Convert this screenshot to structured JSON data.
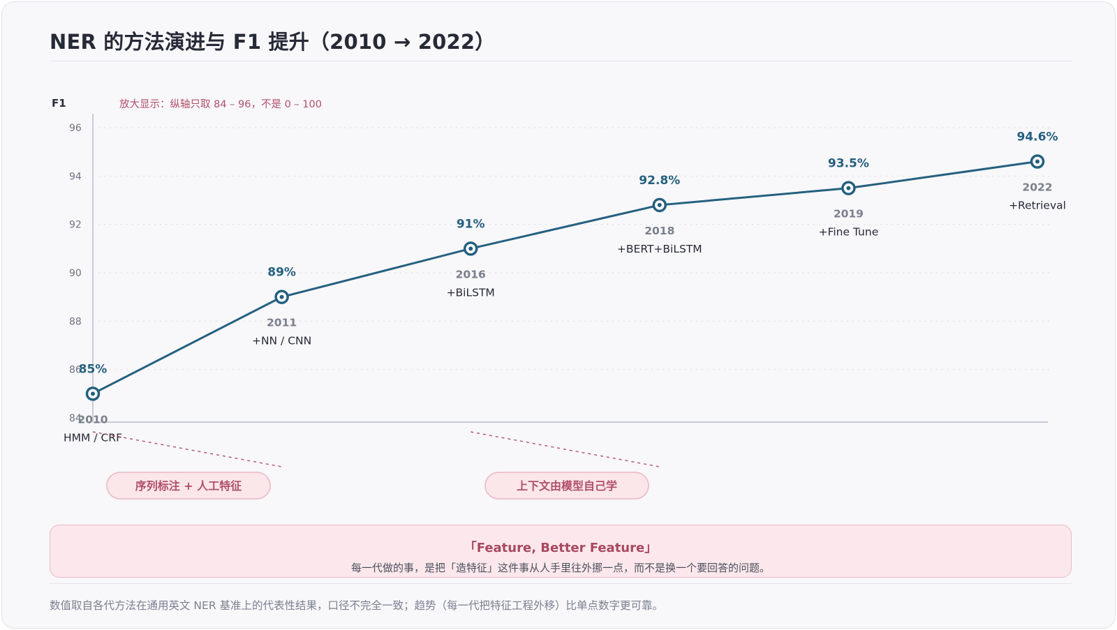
{
  "title": "NER 的方法演进与 F1 提升（2010 → 2022）",
  "chart_data": {
    "type": "line",
    "ylabel": "F1",
    "ylim": [
      84,
      96
    ],
    "yticks": [
      84,
      86,
      88,
      90,
      92,
      94,
      96
    ],
    "zoom_note": "放大显示：纵轴只取 84 – 96，不是 0 – 100",
    "points": [
      {
        "year": "2010",
        "method": "HMM / CRF",
        "f1": 85,
        "label": "85%"
      },
      {
        "year": "2011",
        "method": "+NN / CNN",
        "f1": 89,
        "label": "89%"
      },
      {
        "year": "2016",
        "method": "+BiLSTM",
        "f1": 91,
        "label": "91%"
      },
      {
        "year": "2018",
        "method": "+BERT+BiLSTM",
        "f1": 92.8,
        "label": "92.8%"
      },
      {
        "year": "2019",
        "method": "+Fine Tune",
        "f1": 93.5,
        "label": "93.5%"
      },
      {
        "year": "2022",
        "method": "+Retrieval",
        "f1": 94.6,
        "label": "94.6%"
      }
    ],
    "phases": [
      {
        "label": "序列标注 + 人工特征",
        "from_index": 0,
        "to_index": 1
      },
      {
        "label": "上下文由模型自己学",
        "from_index": 2,
        "to_index": 3
      }
    ],
    "colors": {
      "line": "#24607f",
      "accent": "#b0506a",
      "pill_bg": "#fbe6ea",
      "pill_border": "#e8b8c4"
    }
  },
  "callout": {
    "title": "「Feature, Better Feature」",
    "text": "每一代做的事，是把「造特征」这件事从人手里往外挪一点，而不是换一个要回答的问题。"
  },
  "footer": "数值取自各代方法在通用英文 NER 基准上的代表性结果，口径不完全一致；趋势（每一代把特征工程外移）比单点数字更可靠。"
}
